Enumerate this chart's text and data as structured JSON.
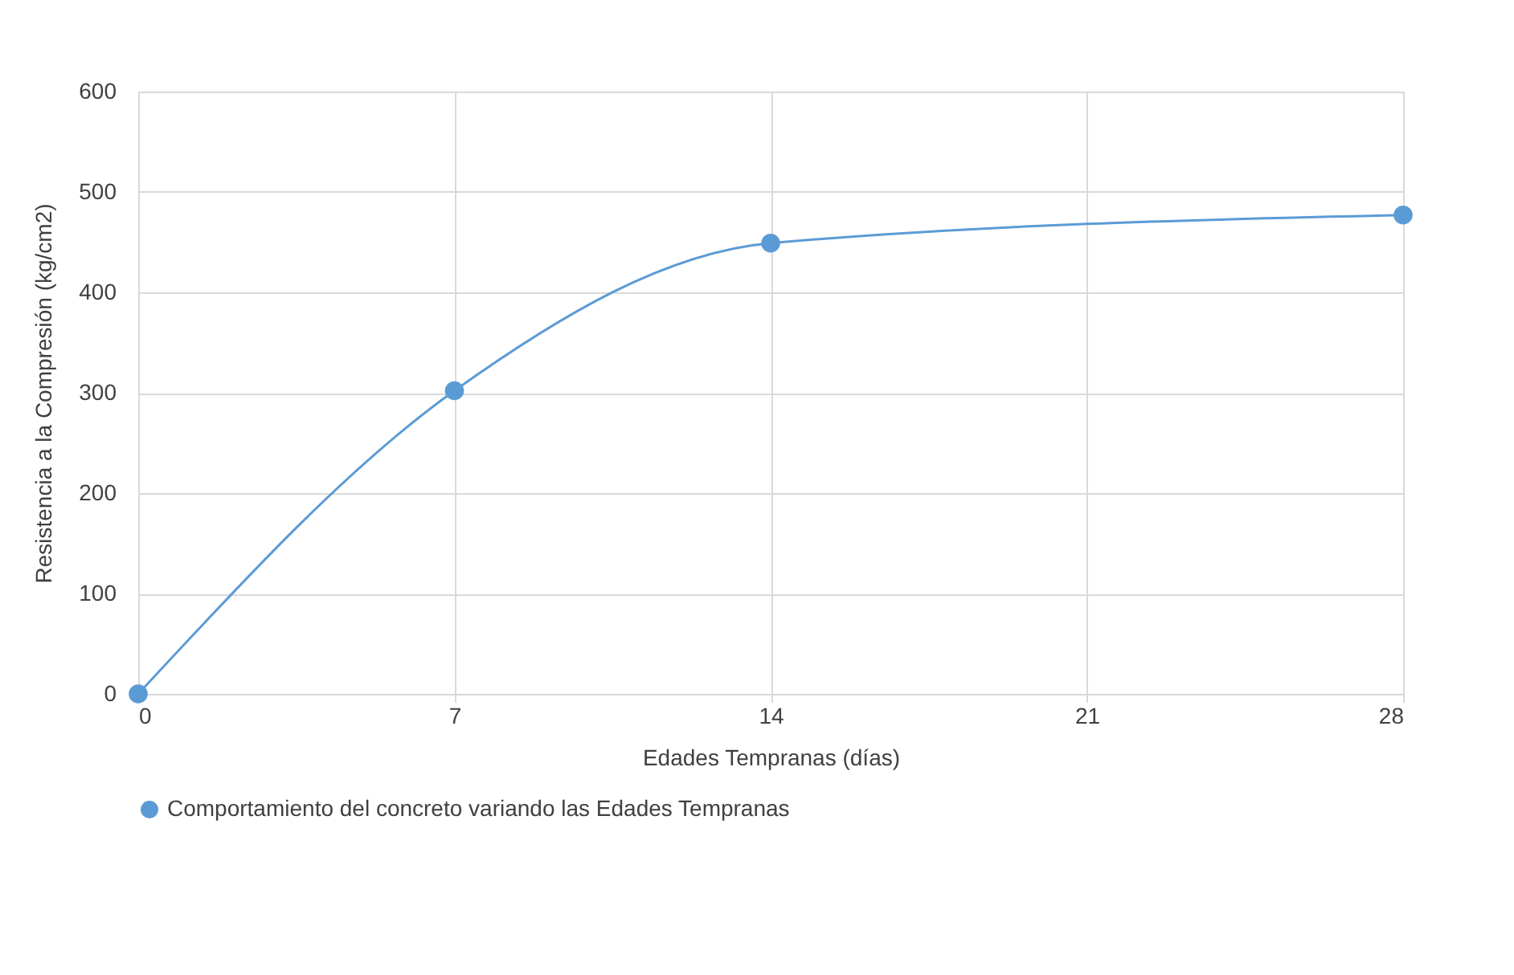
{
  "chart_data": {
    "type": "line",
    "xlabel": "Edades Tempranas (días)",
    "ylabel": "Resistencia a la Compresión (kg/cm2)",
    "x": [
      0,
      7,
      14,
      28
    ],
    "series": [
      {
        "name": "Comportamiento del concreto variando las Edades Tempranas",
        "color": "#5b9bd5",
        "values": [
          0,
          302,
          449,
          477
        ]
      }
    ],
    "xlim": [
      0,
      28
    ],
    "xticks": [
      0,
      7,
      14,
      21,
      28
    ],
    "ylim": [
      0,
      600
    ],
    "yticks": [
      0,
      100,
      200,
      300,
      400,
      500,
      600
    ],
    "grid": true,
    "legend": "bottom",
    "marker": "circle",
    "line_style": "solid"
  }
}
